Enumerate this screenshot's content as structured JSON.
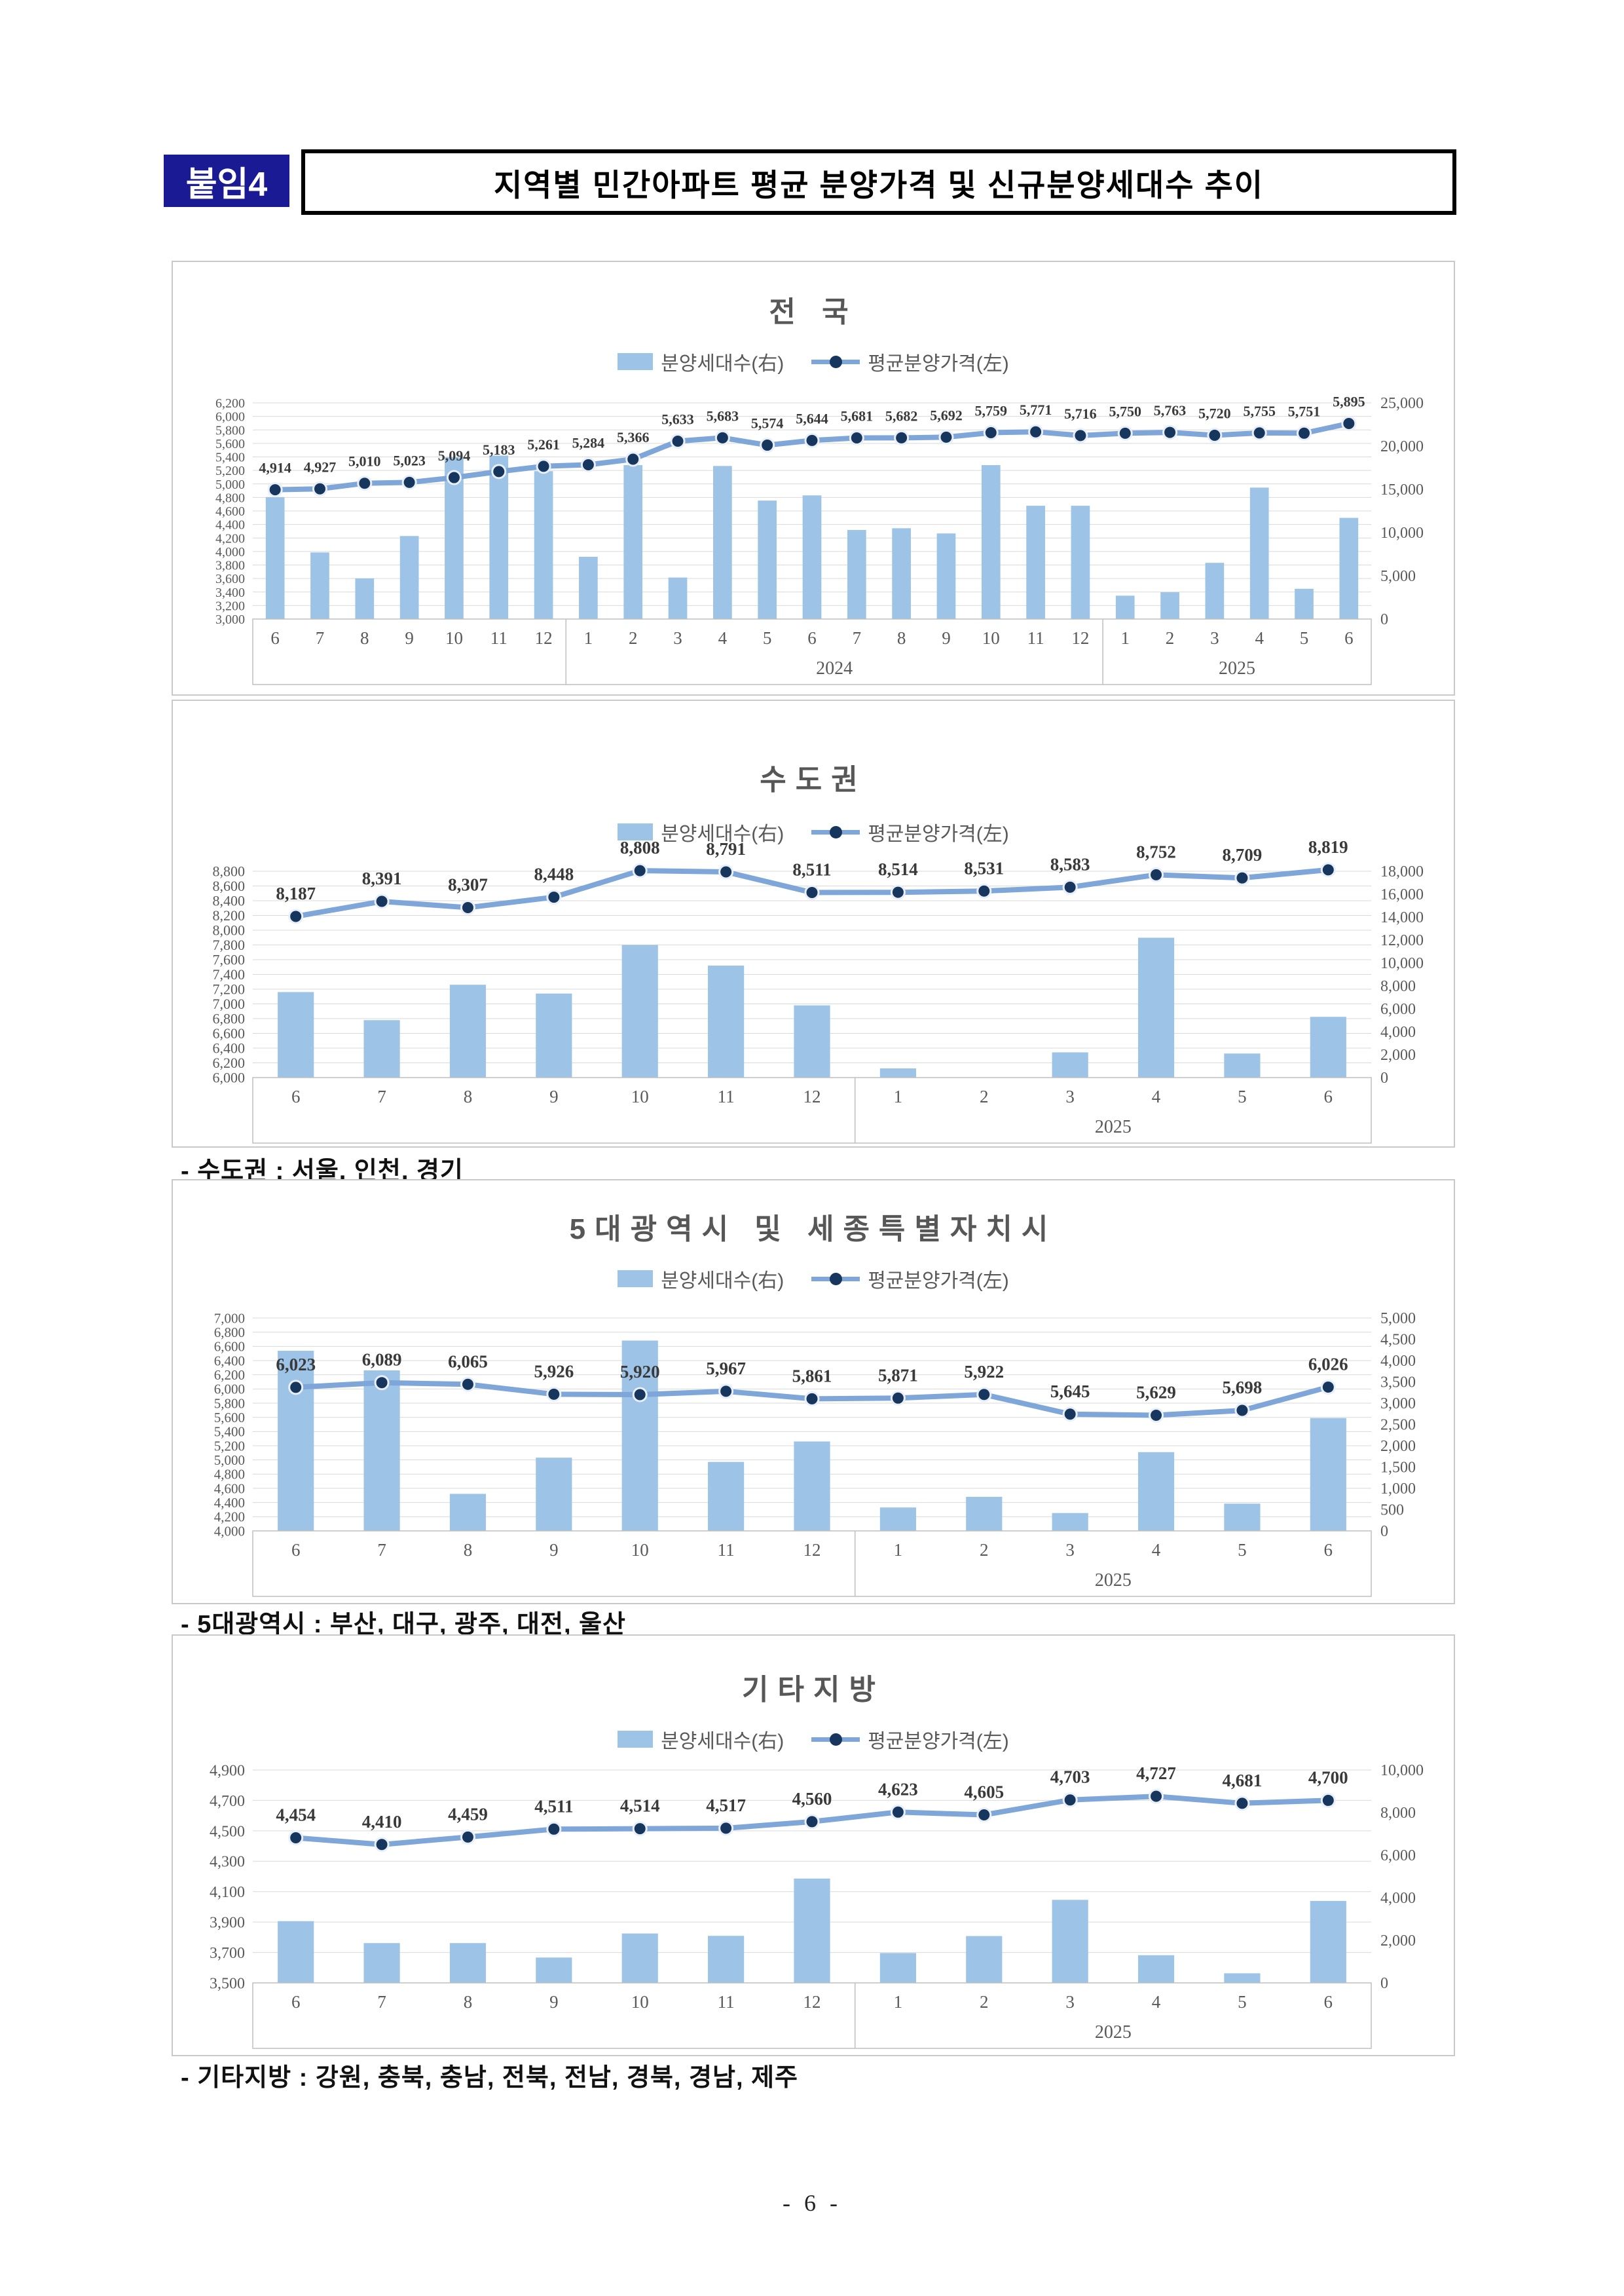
{
  "page": {
    "badge": "붙임4",
    "title": "지역별 민간아파트 평균 분양가격 및 신규분양세대수 추이",
    "footnotes": {
      "capital": "- 수도권 : 서울, 인천, 경기",
      "metro": "- 5대광역시 : 부산, 대구, 광주, 대전, 울산",
      "other": "- 기타지방 : 강원, 충북, 충남, 전북, 전남, 경북, 경남, 제주"
    },
    "page_number": "- 6 -"
  },
  "legend": {
    "bars": "분양세대수(右)",
    "line": "평균분양가격(左)"
  },
  "colors": {
    "bar": "#9dc3e6",
    "line": "#7ea6d9",
    "marker": "#17365d",
    "grid": "#d9d9d9",
    "band_border": "#bfbfbf",
    "axis_text": "#595959",
    "label_text": "#3a3a3a",
    "badge_bg": "#1a1a94",
    "badge_text": "#ffffff"
  },
  "chart_data": [
    {
      "type": "bar+line",
      "title": "전 국",
      "categories": [
        "6",
        "7",
        "8",
        "9",
        "10",
        "11",
        "12",
        "1",
        "2",
        "3",
        "4",
        "5",
        "6",
        "7",
        "8",
        "9",
        "10",
        "11",
        "12",
        "1",
        "2",
        "3",
        "4",
        "5",
        "6"
      ],
      "year_groups": [
        {
          "label": "",
          "count": 7
        },
        {
          "label": "2024",
          "count": 12
        },
        {
          "label": "2025",
          "count": 6
        }
      ],
      "series": [
        {
          "name": "분양세대수(右)",
          "kind": "bar",
          "axis": "right",
          "values": [
            14100,
            7700,
            4700,
            9600,
            18700,
            18900,
            17100,
            7200,
            17800,
            4800,
            17700,
            13700,
            14300,
            10300,
            10500,
            9900,
            17800,
            13100,
            13100,
            2700,
            3100,
            6500,
            15200,
            3500,
            11700
          ]
        },
        {
          "name": "평균분양가격(左)",
          "kind": "line",
          "axis": "left",
          "values": [
            4914,
            4927,
            5010,
            5023,
            5094,
            5183,
            5261,
            5284,
            5366,
            5633,
            5683,
            5574,
            5644,
            5681,
            5682,
            5692,
            5759,
            5771,
            5716,
            5750,
            5763,
            5720,
            5755,
            5751,
            5895
          ]
        }
      ],
      "left_axis": {
        "min": 3000,
        "max": 6200,
        "step": 200
      },
      "right_axis": {
        "min": 0,
        "max": 25000,
        "step": 5000
      },
      "grid": true,
      "legend_position": "top"
    },
    {
      "type": "bar+line",
      "title": "수도권",
      "categories": [
        "6",
        "7",
        "8",
        "9",
        "10",
        "11",
        "12",
        "1",
        "2",
        "3",
        "4",
        "5",
        "6"
      ],
      "year_groups": [
        {
          "label": "",
          "count": 7
        },
        {
          "label": "2025",
          "count": 6
        }
      ],
      "series": [
        {
          "name": "분양세대수(右)",
          "kind": "bar",
          "axis": "right",
          "values": [
            7460,
            5010,
            8100,
            7330,
            11570,
            9770,
            6300,
            800,
            0,
            2200,
            12200,
            2100,
            5300
          ]
        },
        {
          "name": "평균분양가격(左)",
          "kind": "line",
          "axis": "left",
          "values": [
            8187,
            8391,
            8307,
            8448,
            8808,
            8791,
            8511,
            8514,
            8531,
            8583,
            8752,
            8709,
            8819
          ]
        }
      ],
      "left_axis": {
        "min": 6000,
        "max": 8800,
        "step": 200
      },
      "right_axis": {
        "min": 0,
        "max": 18000,
        "step": 2000
      },
      "grid": true,
      "legend_position": "top"
    },
    {
      "type": "bar+line",
      "title": "5대광역시 및 세종특별자치시",
      "categories": [
        "6",
        "7",
        "8",
        "9",
        "10",
        "11",
        "12",
        "1",
        "2",
        "3",
        "4",
        "5",
        "6"
      ],
      "year_groups": [
        {
          "label": "",
          "count": 7
        },
        {
          "label": "2025",
          "count": 6
        }
      ],
      "series": [
        {
          "name": "분양세대수(右)",
          "kind": "bar",
          "axis": "right",
          "values": [
            4230,
            3770,
            870,
            1720,
            4470,
            1620,
            2100,
            550,
            800,
            420,
            1850,
            640,
            2650
          ]
        },
        {
          "name": "평균분양가격(左)",
          "kind": "line",
          "axis": "left",
          "values": [
            6023,
            6089,
            6065,
            5926,
            5920,
            5967,
            5861,
            5871,
            5922,
            5645,
            5629,
            5698,
            6026
          ]
        }
      ],
      "left_axis": {
        "min": 4000,
        "max": 7000,
        "step": 200
      },
      "right_axis": {
        "min": 0,
        "max": 5000,
        "step": 500
      },
      "grid": true,
      "legend_position": "top"
    },
    {
      "type": "bar+line",
      "title": "기타지방",
      "categories": [
        "6",
        "7",
        "8",
        "9",
        "10",
        "11",
        "12",
        "1",
        "2",
        "3",
        "4",
        "5",
        "6"
      ],
      "year_groups": [
        {
          "label": "",
          "count": 7
        },
        {
          "label": "2025",
          "count": 6
        }
      ],
      "series": [
        {
          "name": "분양세대수(右)",
          "kind": "bar",
          "axis": "right",
          "values": [
            2900,
            1870,
            1870,
            1190,
            2320,
            2210,
            4900,
            1400,
            2200,
            3900,
            1300,
            450,
            3850
          ]
        },
        {
          "name": "평균분양가격(左)",
          "kind": "line",
          "axis": "left",
          "values": [
            4454,
            4410,
            4459,
            4511,
            4514,
            4517,
            4560,
            4623,
            4605,
            4703,
            4727,
            4681,
            4700
          ]
        }
      ],
      "left_axis": {
        "min": 3500,
        "max": 4900,
        "step": 200
      },
      "right_axis": {
        "min": 0,
        "max": 10000,
        "step": 2000
      },
      "grid": true,
      "legend_position": "top"
    }
  ]
}
